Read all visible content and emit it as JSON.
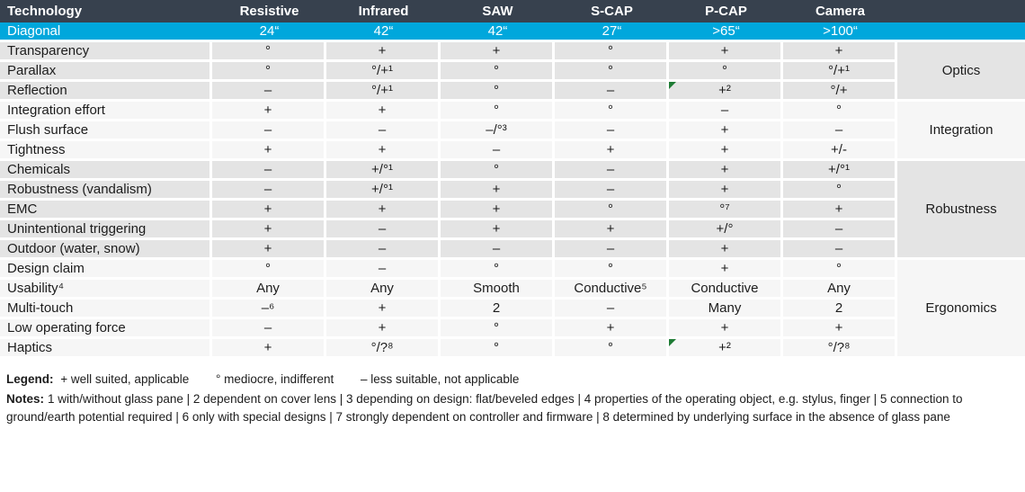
{
  "colors": {
    "header_bg": "#37414e",
    "accent_cyan": "#00a7dc",
    "row_shade_dark": "#e4e4e4",
    "row_shade_light": "#f6f6f6",
    "marker_green": "#1e7b34",
    "text": "#1c1c1c"
  },
  "chart_data": {
    "type": "table",
    "columns": [
      "Technology",
      "Resistive",
      "Infrared",
      "SAW",
      "S-CAP",
      "P-CAP",
      "Camera"
    ],
    "diagonal": {
      "label": "Diagonal",
      "values": [
        "24“",
        "42“",
        "42“",
        "27“",
        ">65“",
        ">100“"
      ]
    },
    "groups": [
      {
        "name": "Optics",
        "rows": [
          {
            "label": "Transparency",
            "values": [
              "°",
              "+",
              "+",
              "°",
              "+",
              "+"
            ]
          },
          {
            "label": "Parallax",
            "values": [
              "°",
              "°/+¹",
              "°",
              "°",
              "°",
              "°/+¹"
            ]
          },
          {
            "label": "Reflection",
            "values": [
              "–",
              "°/+¹",
              "°",
              "–",
              "+²",
              "°/+"
            ],
            "marker_col": 4
          }
        ]
      },
      {
        "name": "Integration",
        "rows": [
          {
            "label": "Integration effort",
            "values": [
              "+",
              "+",
              "°",
              "°",
              "–",
              "°"
            ]
          },
          {
            "label": "Flush surface",
            "values": [
              "–",
              "–",
              "–/°³",
              "–",
              "+",
              "–"
            ]
          },
          {
            "label": "Tightness",
            "values": [
              "+",
              "+",
              "–",
              "+",
              "+",
              "+/-"
            ]
          }
        ]
      },
      {
        "name": "Robustness",
        "rows": [
          {
            "label": "Chemicals",
            "values": [
              "–",
              "+/°¹",
              "°",
              "–",
              "+",
              "+/°¹"
            ]
          },
          {
            "label": "Robustness (vandalism)",
            "values": [
              "–",
              "+/°¹",
              "+",
              "–",
              "+",
              "°"
            ]
          },
          {
            "label": "EMC",
            "values": [
              "+",
              "+",
              "+",
              "°",
              "°⁷",
              "+"
            ]
          },
          {
            "label": "Unintentional triggering",
            "values": [
              "+",
              "–",
              "+",
              "+",
              "+/°",
              "–"
            ]
          },
          {
            "label": "Outdoor (water, snow)",
            "values": [
              "+",
              "–",
              "–",
              "–",
              "+",
              "–"
            ]
          }
        ]
      },
      {
        "name": "Ergonomics",
        "rows": [
          {
            "label": "Design claim",
            "values": [
              "°",
              "–",
              "°",
              "°",
              "+",
              "°"
            ]
          },
          {
            "label": "Usability⁴",
            "values": [
              "Any",
              "Any",
              "Smooth",
              "Conductive⁵",
              "Conductive",
              "Any"
            ]
          },
          {
            "label": "Multi-touch",
            "values": [
              "–⁶",
              "+",
              "2",
              "–",
              "Many",
              "2"
            ]
          },
          {
            "label": "Low operating force",
            "values": [
              "–",
              "+",
              "°",
              "+",
              "+",
              "+"
            ]
          },
          {
            "label": "Haptics",
            "values": [
              "+",
              "°/?⁸",
              "°",
              "°",
              "+²",
              "°/?⁸"
            ],
            "marker_col": 4
          }
        ]
      }
    ],
    "legend": {
      "title": "Legend:",
      "items": [
        "+ well suited, applicable",
        "° mediocre, indifferent",
        "– less suitable, not applicable"
      ]
    },
    "notes": {
      "title": "Notes:",
      "text": "1 with/without glass pane  |  2 dependent on cover lens  |  3 depending on design: flat/beveled edges  |  4 properties of the operating object, e.g. stylus, finger  |  5 connection to ground/earth potential required  |  6 only with special designs  |  7 strongly dependent on controller and firmware  |  8 determined by underlying surface in the absence of glass pane"
    }
  }
}
